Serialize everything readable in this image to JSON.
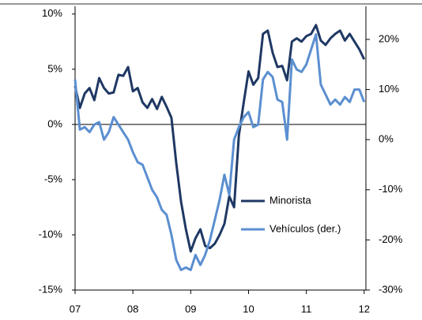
{
  "chart_data": {
    "type": "line",
    "x": [
      2007,
      2007.083,
      2007.167,
      2007.25,
      2007.333,
      2007.417,
      2007.5,
      2007.583,
      2007.667,
      2007.75,
      2007.833,
      2007.917,
      2008,
      2008.083,
      2008.167,
      2008.25,
      2008.333,
      2008.417,
      2008.5,
      2008.583,
      2008.667,
      2008.75,
      2008.833,
      2008.917,
      2009,
      2009.083,
      2009.167,
      2009.25,
      2009.333,
      2009.417,
      2009.5,
      2009.583,
      2009.667,
      2009.75,
      2009.833,
      2009.917,
      2010,
      2010.083,
      2010.167,
      2010.25,
      2010.333,
      2010.417,
      2010.5,
      2010.583,
      2010.667,
      2010.75,
      2010.833,
      2010.917,
      2011,
      2011.083,
      2011.167,
      2011.25,
      2011.333,
      2011.417,
      2011.5,
      2011.583,
      2011.667,
      2011.75,
      2011.833,
      2011.917,
      2012
    ],
    "series": [
      {
        "name": "Minorista",
        "color": "#1f3864",
        "axis": "y",
        "values": [
          3.5,
          1.5,
          2.8,
          3.3,
          2.2,
          4.2,
          3.3,
          2.8,
          2.9,
          4.5,
          4.4,
          5.2,
          3.0,
          3.3,
          2.0,
          1.5,
          2.3,
          1.4,
          2.5,
          1.6,
          0.6,
          -3.5,
          -7,
          -9.5,
          -11.5,
          -10.3,
          -9.5,
          -11,
          -11.2,
          -10.8,
          -10,
          -9,
          -6.5,
          -7.5,
          -1,
          2,
          4.8,
          3.6,
          4.2,
          8.2,
          8.5,
          6.5,
          5.2,
          5.3,
          4,
          7.5,
          7.8,
          7.5,
          8,
          8.2,
          9,
          7.6,
          7.2,
          7.8,
          8.2,
          8.5,
          7.6,
          8.2,
          7.5,
          6.8,
          5.9
        ]
      },
      {
        "name": "Vehículos (der.)",
        "color": "#5b8fd0",
        "axis": "y2",
        "values": [
          12,
          2,
          2.5,
          1.5,
          3,
          3.5,
          0,
          1.5,
          4.5,
          3,
          1.5,
          0,
          -2.5,
          -4.5,
          -5,
          -7.5,
          -10,
          -11.5,
          -14,
          -15,
          -19,
          -24,
          -26,
          -25.5,
          -26,
          -23,
          -25,
          -23,
          -20,
          -16,
          -12,
          -7,
          -11,
          0,
          2.5,
          4.5,
          5.5,
          2.5,
          3,
          12,
          13.5,
          12.5,
          8,
          7.5,
          0,
          16,
          14,
          13.5,
          15,
          18,
          21,
          11,
          9,
          7,
          8,
          7,
          8.5,
          7.5,
          10,
          10,
          7.5
        ]
      }
    ],
    "xlim": [
      2007,
      2012.03
    ],
    "xticks": [
      {
        "value": 2007,
        "label": "07"
      },
      {
        "value": 2008,
        "label": "08"
      },
      {
        "value": 2009,
        "label": "09"
      },
      {
        "value": 2010,
        "label": "10"
      },
      {
        "value": 2011,
        "label": "11"
      },
      {
        "value": 2012,
        "label": "12"
      }
    ],
    "ylim": [
      -15,
      10.7
    ],
    "yticks": [
      {
        "value": -15,
        "label": "-15%"
      },
      {
        "value": -10,
        "label": "-10%"
      },
      {
        "value": -5,
        "label": "-5%"
      },
      {
        "value": 0,
        "label": "0%"
      },
      {
        "value": 5,
        "label": "5%"
      },
      {
        "value": 10,
        "label": "10%"
      }
    ],
    "y2lim": [
      -30,
      26.6
    ],
    "y2ticks": [
      {
        "value": -30,
        "label": "-30%"
      },
      {
        "value": -20,
        "label": "-20%"
      },
      {
        "value": -10,
        "label": "-10%"
      },
      {
        "value": 0,
        "label": "0%"
      },
      {
        "value": 10,
        "label": "10%"
      },
      {
        "value": 20,
        "label": "20%"
      }
    ],
    "legend": "right"
  }
}
